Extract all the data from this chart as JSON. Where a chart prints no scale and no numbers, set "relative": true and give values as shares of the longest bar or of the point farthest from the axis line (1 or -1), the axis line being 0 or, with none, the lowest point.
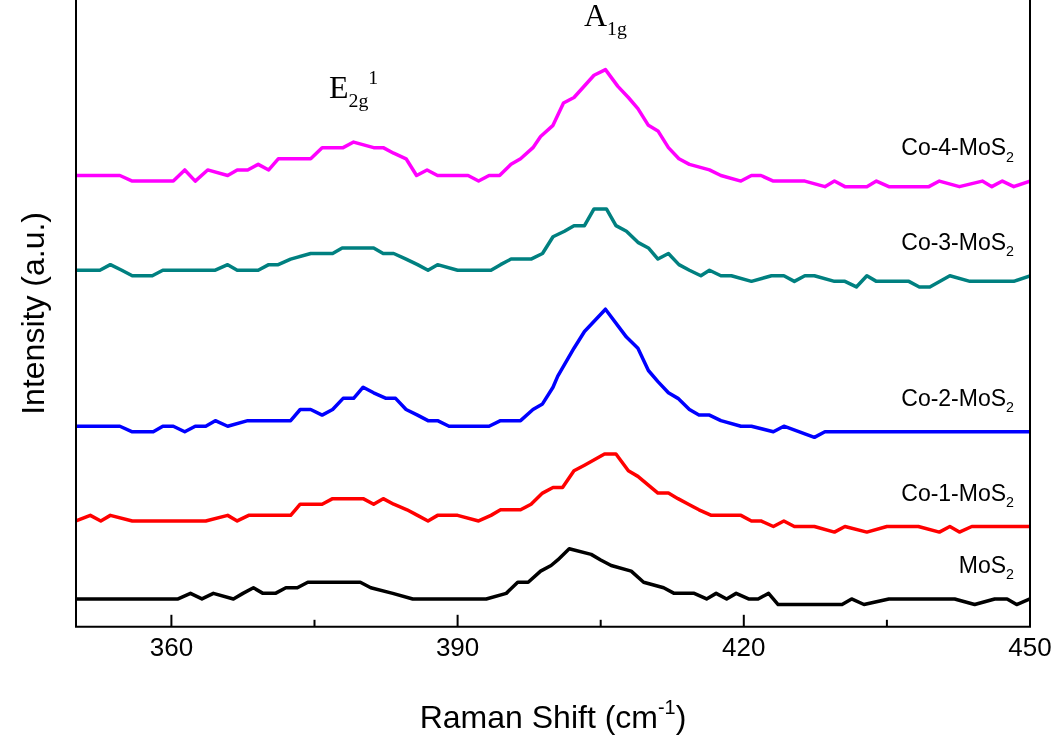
{
  "chart_data": {
    "type": "line",
    "xlabel": "Raman Shift (cm$^{-1}$)",
    "ylabel": "Intensity (a.u.)",
    "relative": true,
    "xlim": [
      350,
      450
    ],
    "xticks": [
      360,
      {
        "value": 375,
        "label": null
      },
      390,
      {
        "value": 405,
        "label": null
      },
      420,
      {
        "value": 435,
        "label": null
      },
      450
    ],
    "grid": false,
    "legend": false,
    "line_style": "solid",
    "annotations": [
      {
        "text": "E$_{2g}$$^{1}$",
        "x": 379.1,
        "y": 0.87
      },
      {
        "text": "A$_{1g}$",
        "x": 405.5,
        "y": 1
      }
    ],
    "series": [
      {
        "name": "Co-4-MoS$_{2}$",
        "color": "#ff00ff",
        "x": [
          350,
          351.5,
          354.6,
          355.9,
          360.2,
          361.4,
          362.5,
          363.8,
          365.9,
          366.9,
          368,
          369.1,
          370.2,
          371.2,
          372.5,
          374.6,
          375.8,
          376.9,
          378,
          379.1,
          381.2,
          382.2,
          383.3,
          384.6,
          385.7,
          386.8,
          387.9,
          389,
          391.1,
          392.2,
          393.3,
          394.4,
          395.6,
          396.6,
          397.9,
          398.7,
          400,
          401.1,
          402.2,
          404.3,
          405.5,
          406.8,
          407.9,
          408.9,
          410,
          411,
          412.1,
          413.2,
          414.3,
          416.4,
          417.6,
          419.7,
          420.8,
          421.8,
          423.1,
          426.4,
          428.5,
          429.5,
          430.6,
          431.8,
          432.9,
          433.9,
          435.2,
          436.2,
          439.4,
          440.5,
          442.6,
          445,
          446,
          447.1,
          448.3,
          450
        ],
        "values": [
          0.81,
          0.81,
          0.81,
          0.8,
          0.8,
          0.82,
          0.8,
          0.82,
          0.81,
          0.82,
          0.82,
          0.83,
          0.82,
          0.84,
          0.84,
          0.84,
          0.86,
          0.86,
          0.86,
          0.87,
          0.86,
          0.86,
          0.85,
          0.84,
          0.81,
          0.82,
          0.81,
          0.81,
          0.81,
          0.8,
          0.81,
          0.81,
          0.83,
          0.84,
          0.86,
          0.88,
          0.9,
          0.94,
          0.95,
          0.99,
          1,
          0.97,
          0.95,
          0.93,
          0.9,
          0.89,
          0.86,
          0.84,
          0.83,
          0.82,
          0.81,
          0.8,
          0.81,
          0.81,
          0.8,
          0.8,
          0.79,
          0.8,
          0.79,
          0.79,
          0.79,
          0.8,
          0.79,
          0.79,
          0.79,
          0.8,
          0.79,
          0.8,
          0.79,
          0.8,
          0.79,
          0.8
        ]
      },
      {
        "name": "Co-3-MoS$_{2}$",
        "color": "#008080",
        "x": [
          350,
          351.3,
          352.5,
          353.6,
          354.8,
          355.9,
          357,
          358,
          359.1,
          360.2,
          361.2,
          364.6,
          365.9,
          366.9,
          369.1,
          370.2,
          371.2,
          372.5,
          374.6,
          376.9,
          377.9,
          381.2,
          382.2,
          383.3,
          384.6,
          385.8,
          386.9,
          387.9,
          390,
          391.2,
          392.2,
          393.5,
          394.5,
          395.6,
          396.6,
          397.7,
          398.9,
          400,
          401.2,
          402.2,
          403.3,
          404.3,
          405.6,
          406.6,
          407.7,
          408.9,
          410,
          411,
          412.1,
          413.2,
          414.3,
          415.5,
          416.4,
          417.6,
          418.7,
          420.8,
          422.9,
          424.2,
          425.3,
          426.4,
          427.4,
          429.5,
          430.6,
          431.8,
          432.9,
          433.9,
          435.2,
          437.3,
          438.4,
          439.5,
          441.6,
          443.7,
          446,
          447.1,
          448.3,
          450
        ],
        "values": [
          0.64,
          0.64,
          0.64,
          0.65,
          0.64,
          0.63,
          0.63,
          0.63,
          0.64,
          0.64,
          0.64,
          0.64,
          0.65,
          0.64,
          0.64,
          0.65,
          0.65,
          0.66,
          0.67,
          0.67,
          0.68,
          0.68,
          0.67,
          0.67,
          0.66,
          0.65,
          0.64,
          0.65,
          0.64,
          0.64,
          0.64,
          0.64,
          0.65,
          0.66,
          0.66,
          0.66,
          0.67,
          0.7,
          0.71,
          0.72,
          0.72,
          0.75,
          0.75,
          0.72,
          0.71,
          0.69,
          0.68,
          0.66,
          0.67,
          0.65,
          0.64,
          0.63,
          0.64,
          0.63,
          0.63,
          0.62,
          0.63,
          0.63,
          0.62,
          0.63,
          0.63,
          0.62,
          0.62,
          0.61,
          0.63,
          0.62,
          0.62,
          0.62,
          0.61,
          0.61,
          0.63,
          0.62,
          0.62,
          0.62,
          0.62,
          0.63
        ]
      },
      {
        "name": "Co-2-MoS$_{2}$",
        "color": "#0000ff",
        "x": [
          350,
          351.5,
          354.6,
          355.9,
          356.9,
          358.1,
          359.1,
          360.2,
          361.4,
          362.5,
          363.6,
          364.6,
          365.9,
          368,
          369.1,
          370.2,
          371.2,
          372.5,
          373.5,
          374.6,
          375.8,
          376.9,
          378,
          379.1,
          380.1,
          381.2,
          382.5,
          383.5,
          384.6,
          385.8,
          386.9,
          387.9,
          389.1,
          390.1,
          391.2,
          392.2,
          393.3,
          394.5,
          395.6,
          396.6,
          397.9,
          398.9,
          400,
          400.5,
          402.2,
          403.3,
          405.5,
          407.7,
          408.9,
          410,
          411,
          412.1,
          413.1,
          414.3,
          415.3,
          416.4,
          417.6,
          419.7,
          420.8,
          423.1,
          424.2,
          427.4,
          428.5,
          430.6,
          431.8,
          433.9,
          435.2,
          436.2,
          440.5,
          441.6,
          445,
          447.8,
          450
        ],
        "values": [
          0.36,
          0.36,
          0.36,
          0.35,
          0.35,
          0.35,
          0.36,
          0.36,
          0.35,
          0.36,
          0.36,
          0.37,
          0.36,
          0.37,
          0.37,
          0.37,
          0.37,
          0.37,
          0.39,
          0.39,
          0.38,
          0.39,
          0.41,
          0.41,
          0.43,
          0.42,
          0.41,
          0.41,
          0.39,
          0.38,
          0.37,
          0.37,
          0.36,
          0.36,
          0.36,
          0.36,
          0.36,
          0.37,
          0.37,
          0.37,
          0.39,
          0.4,
          0.43,
          0.45,
          0.5,
          0.53,
          0.57,
          0.52,
          0.5,
          0.46,
          0.44,
          0.42,
          0.41,
          0.39,
          0.38,
          0.38,
          0.37,
          0.36,
          0.36,
          0.35,
          0.36,
          0.34,
          0.35,
          0.35,
          0.35,
          0.35,
          0.35,
          0.35,
          0.35,
          0.35,
          0.35,
          0.35,
          0.35
        ]
      },
      {
        "name": "Co-1-MoS$_{2}$",
        "color": "#ff0000",
        "x": [
          350,
          351.5,
          352.6,
          353.6,
          355.9,
          356.9,
          359.1,
          360.2,
          361.4,
          363.6,
          365.9,
          366.9,
          368.1,
          369.1,
          370.2,
          371.2,
          372.5,
          373.5,
          374.6,
          375.8,
          376.9,
          378,
          380.1,
          381.2,
          382.2,
          383.3,
          384.7,
          385.8,
          386.9,
          387.9,
          390,
          392.2,
          393.5,
          394.5,
          395.6,
          396.6,
          397.7,
          398.9,
          400,
          401,
          402.2,
          403.3,
          405.4,
          406.6,
          407.9,
          408.9,
          411,
          412.1,
          413.1,
          414.2,
          415.3,
          416.6,
          418.7,
          419.7,
          420.8,
          421.8,
          423.1,
          424.2,
          425.3,
          427.4,
          429.5,
          430.6,
          432.9,
          435,
          436.2,
          438.3,
          440.5,
          441.6,
          442.6,
          443.9,
          446,
          448.3,
          450
        ],
        "values": [
          0.19,
          0.2,
          0.19,
          0.2,
          0.19,
          0.19,
          0.19,
          0.19,
          0.19,
          0.19,
          0.2,
          0.19,
          0.2,
          0.2,
          0.2,
          0.2,
          0.2,
          0.22,
          0.22,
          0.22,
          0.23,
          0.23,
          0.23,
          0.22,
          0.23,
          0.22,
          0.21,
          0.2,
          0.19,
          0.2,
          0.2,
          0.19,
          0.2,
          0.21,
          0.21,
          0.21,
          0.22,
          0.24,
          0.25,
          0.25,
          0.28,
          0.29,
          0.31,
          0.31,
          0.28,
          0.27,
          0.24,
          0.24,
          0.23,
          0.22,
          0.21,
          0.2,
          0.2,
          0.2,
          0.19,
          0.19,
          0.18,
          0.19,
          0.18,
          0.18,
          0.17,
          0.18,
          0.17,
          0.18,
          0.18,
          0.18,
          0.17,
          0.18,
          0.17,
          0.18,
          0.18,
          0.18,
          0.18
        ]
      },
      {
        "name": "MoS$_{2}$",
        "color": "#000000",
        "x": [
          350,
          352.2,
          354.3,
          356.4,
          357.6,
          358.8,
          360.7,
          362,
          363.2,
          364.4,
          366.5,
          367.5,
          368.6,
          369.6,
          370.9,
          372,
          373.2,
          374.3,
          375.3,
          376.5,
          378.6,
          379.8,
          380.9,
          383.2,
          385.3,
          386.4,
          388.4,
          389.6,
          390.7,
          391.7,
          393,
          395.1,
          396.3,
          397.4,
          398.7,
          399.8,
          400.5,
          401.7,
          404,
          405,
          406.1,
          408.2,
          409.5,
          411.6,
          412.7,
          413.9,
          414.8,
          416.1,
          417.1,
          418.2,
          419.2,
          420.5,
          421.5,
          422.6,
          423.6,
          426.8,
          430.3,
          431.3,
          432.6,
          435.2,
          437.3,
          442.1,
          444.2,
          446.3,
          447.6,
          448.6,
          450
        ],
        "values": [
          0.05,
          0.05,
          0.05,
          0.05,
          0.05,
          0.05,
          0.05,
          0.06,
          0.05,
          0.06,
          0.05,
          0.06,
          0.07,
          0.06,
          0.06,
          0.07,
          0.07,
          0.08,
          0.08,
          0.08,
          0.08,
          0.08,
          0.07,
          0.06,
          0.05,
          0.05,
          0.05,
          0.05,
          0.05,
          0.05,
          0.05,
          0.06,
          0.08,
          0.08,
          0.1,
          0.11,
          0.12,
          0.14,
          0.13,
          0.12,
          0.11,
          0.1,
          0.08,
          0.07,
          0.06,
          0.06,
          0.06,
          0.05,
          0.06,
          0.05,
          0.06,
          0.05,
          0.05,
          0.06,
          0.04,
          0.04,
          0.04,
          0.05,
          0.04,
          0.05,
          0.05,
          0.05,
          0.04,
          0.05,
          0.05,
          0.04,
          0.05
        ]
      }
    ]
  }
}
